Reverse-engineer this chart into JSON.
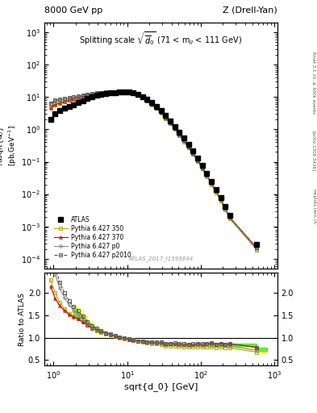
{
  "title_top": "8000 GeV pp",
  "title_right": "Z (Drell-Yan)",
  "panel_title": "Splitting scale $\\sqrt{\\overline{d_0}}$ (71 < m$_{ll}$ < 111 GeV)",
  "xlabel": "sqrt{d_0} [GeV]",
  "ylabel_main": "d$\\sigma$\n/dsqrt{d_0}\n[pb,GeV$^{-1}$]",
  "ylabel_ratio": "Ratio to ATLAS",
  "watermark": "ATLAS_2017_I1599844",
  "rivet_label": "Rivet 3.1.10, ≥ 400k events",
  "arxiv_label": "[arXiv:1306.3436]",
  "mcplots_label": "mcplots.cern.ch",
  "xlim": [
    0.75,
    1100
  ],
  "ylim_main": [
    5e-05,
    2000.0
  ],
  "ylim_ratio": [
    0.38,
    2.45
  ],
  "yticks_ratio": [
    0.5,
    1.0,
    1.5,
    2.0
  ],
  "atlas_x": [
    0.91,
    1.05,
    1.21,
    1.41,
    1.62,
    1.87,
    2.16,
    2.49,
    2.88,
    3.32,
    3.84,
    4.43,
    5.12,
    5.91,
    6.83,
    7.89,
    9.11,
    10.52,
    12.15,
    14.03,
    16.2,
    18.71,
    21.6,
    24.94,
    28.79,
    33.24,
    38.37,
    44.3,
    51.15,
    59.05,
    68.18,
    78.71,
    90.87,
    104.9,
    121.1,
    139.8,
    161.4,
    186.3,
    215.1,
    248.3,
    573.0
  ],
  "atlas_y": [
    2.1,
    3.1,
    3.8,
    4.5,
    5.2,
    5.9,
    6.7,
    7.8,
    9.0,
    10.2,
    11.2,
    12.0,
    12.8,
    13.4,
    14.0,
    14.4,
    14.5,
    14.2,
    13.4,
    12.2,
    10.4,
    8.6,
    6.8,
    5.2,
    3.8,
    2.7,
    1.85,
    1.25,
    0.82,
    0.53,
    0.34,
    0.212,
    0.128,
    0.076,
    0.044,
    0.025,
    0.014,
    0.0078,
    0.0042,
    0.0022,
    0.00028
  ],
  "py350_x": [
    0.91,
    1.05,
    1.21,
    1.41,
    1.62,
    1.87,
    2.16,
    2.49,
    2.88,
    3.32,
    3.84,
    4.43,
    5.12,
    5.91,
    6.83,
    7.89,
    9.11,
    10.52,
    12.15,
    14.03,
    16.2,
    18.71,
    21.6,
    24.94,
    28.79,
    33.24,
    38.37,
    44.3,
    51.15,
    59.05,
    68.18,
    78.71,
    90.87,
    104.9,
    121.1,
    139.8,
    161.4,
    186.3,
    215.1,
    248.3,
    573.0
  ],
  "py350_y": [
    4.8,
    6.2,
    6.8,
    7.4,
    8.0,
    8.7,
    9.5,
    10.5,
    11.5,
    12.3,
    13.0,
    13.5,
    13.9,
    14.2,
    14.4,
    14.4,
    14.2,
    13.6,
    12.6,
    11.2,
    9.4,
    7.6,
    5.9,
    4.5,
    3.2,
    2.2,
    1.52,
    1.02,
    0.66,
    0.42,
    0.27,
    0.168,
    0.102,
    0.06,
    0.035,
    0.02,
    0.011,
    0.0062,
    0.0033,
    0.0017,
    0.00019
  ],
  "py350_color": "#aaaa00",
  "py350_marker": "s",
  "py350_linestyle": "-",
  "py370_x": [
    0.91,
    1.05,
    1.21,
    1.41,
    1.62,
    1.87,
    2.16,
    2.49,
    2.88,
    3.32,
    3.84,
    4.43,
    5.12,
    5.91,
    6.83,
    7.89,
    9.11,
    10.52,
    12.15,
    14.03,
    16.2,
    18.71,
    21.6,
    24.94,
    28.79,
    33.24,
    38.37,
    44.3,
    51.15,
    59.05,
    68.18,
    78.71,
    90.87,
    104.9,
    121.1,
    139.8,
    161.4,
    186.3,
    215.1,
    248.3,
    573.0
  ],
  "py370_y": [
    4.5,
    5.8,
    6.5,
    7.2,
    7.9,
    8.6,
    9.5,
    10.5,
    11.5,
    12.4,
    13.1,
    13.6,
    14.0,
    14.3,
    14.5,
    14.5,
    14.3,
    13.7,
    12.7,
    11.3,
    9.5,
    7.8,
    6.1,
    4.6,
    3.4,
    2.3,
    1.6,
    1.08,
    0.7,
    0.45,
    0.29,
    0.18,
    0.11,
    0.065,
    0.038,
    0.022,
    0.012,
    0.0068,
    0.0036,
    0.0019,
    0.00022
  ],
  "py370_color": "#cc0000",
  "py370_marker": "^",
  "py370_linestyle": "-",
  "pyp0_x": [
    0.91,
    1.05,
    1.21,
    1.41,
    1.62,
    1.87,
    2.16,
    2.49,
    2.88,
    3.32,
    3.84,
    4.43,
    5.12,
    5.91,
    6.83,
    7.89,
    9.11,
    10.52,
    12.15,
    14.03,
    16.2,
    18.71,
    21.6,
    24.94,
    28.79,
    33.24,
    38.37,
    44.3,
    51.15,
    59.05,
    68.18,
    78.71,
    90.87,
    104.9,
    121.1,
    139.8,
    161.4,
    186.3,
    215.1,
    248.3,
    573.0
  ],
  "pyp0_y": [
    6.0,
    7.5,
    8.0,
    8.5,
    9.0,
    9.5,
    10.2,
    11.0,
    11.8,
    12.5,
    13.1,
    13.6,
    14.0,
    14.3,
    14.5,
    14.5,
    14.3,
    13.7,
    12.7,
    11.2,
    9.5,
    7.7,
    6.0,
    4.6,
    3.3,
    2.3,
    1.58,
    1.06,
    0.69,
    0.44,
    0.28,
    0.175,
    0.107,
    0.063,
    0.037,
    0.021,
    0.012,
    0.0065,
    0.0035,
    0.0018,
    0.0002
  ],
  "pyp0_color": "#888888",
  "pyp0_marker": "o",
  "pyp0_linestyle": "-",
  "pyp2010_x": [
    0.91,
    1.05,
    1.21,
    1.41,
    1.62,
    1.87,
    2.16,
    2.49,
    2.88,
    3.32,
    3.84,
    4.43,
    5.12,
    5.91,
    6.83,
    7.89,
    9.11,
    10.52,
    12.15,
    14.03,
    16.2,
    18.71,
    21.6,
    24.94,
    28.79,
    33.24,
    38.37,
    44.3,
    51.15,
    59.05,
    68.18,
    78.71,
    90.87,
    104.9,
    121.1,
    139.8,
    161.4,
    186.3,
    215.1,
    248.3,
    573.0
  ],
  "pyp2010_y": [
    6.5,
    8.0,
    8.5,
    9.0,
    9.5,
    10.0,
    10.7,
    11.5,
    12.2,
    12.9,
    13.5,
    13.9,
    14.2,
    14.5,
    14.6,
    14.6,
    14.4,
    13.8,
    12.8,
    11.3,
    9.6,
    7.8,
    6.1,
    4.7,
    3.4,
    2.35,
    1.62,
    1.1,
    0.71,
    0.46,
    0.29,
    0.182,
    0.111,
    0.066,
    0.038,
    0.022,
    0.012,
    0.0068,
    0.0036,
    0.0019,
    0.00022
  ],
  "pyp2010_color": "#555555",
  "pyp2010_marker": "s",
  "pyp2010_linestyle": "--",
  "band_yellow_color": "#ffff00",
  "band_yellow_alpha": 0.75,
  "band_green_color": "#00dd44",
  "band_green_alpha": 0.55,
  "legend_entries": [
    "ATLAS",
    "Pythia 6.427 350",
    "Pythia 6.427 370",
    "Pythia 6.427 p0",
    "Pythia 6.427 p2010"
  ]
}
